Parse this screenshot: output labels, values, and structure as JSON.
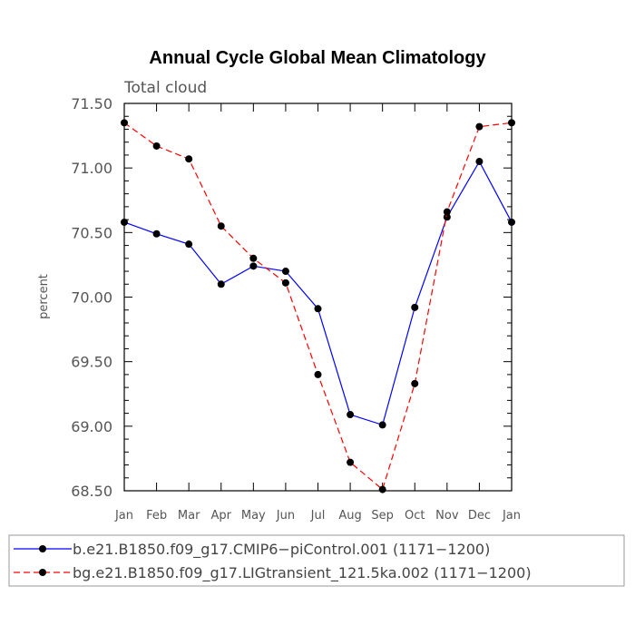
{
  "chart_data": {
    "type": "line",
    "title": "Annual Cycle Global Mean Climatology",
    "subtitle": "Total cloud",
    "xlabel": "",
    "ylabel": "percent",
    "categories": [
      "Jan",
      "Feb",
      "Mar",
      "Apr",
      "May",
      "Jun",
      "Jul",
      "Aug",
      "Sep",
      "Oct",
      "Nov",
      "Dec",
      "Jan"
    ],
    "ylim": [
      68.5,
      71.5
    ],
    "yticks": [
      "68.50",
      "69.00",
      "69.50",
      "70.00",
      "70.50",
      "71.00",
      "71.50"
    ],
    "grid": false,
    "legend_position": "bottom",
    "series": [
      {
        "name": "b.e21.B1850.f09_g17.CMIP6−piControl.001 (1171−1200)",
        "color": "#0000ff",
        "dash": "solid",
        "values": [
          70.58,
          70.49,
          70.41,
          70.1,
          70.24,
          70.2,
          69.91,
          69.09,
          69.01,
          69.92,
          70.62,
          71.05,
          70.58
        ]
      },
      {
        "name": "bg.e21.B1850.f09_g17.LIGtransient_121.5ka.002 (1171−1200)",
        "color": "#ff0000",
        "dash": "dashed",
        "values": [
          71.35,
          71.17,
          71.07,
          70.55,
          70.3,
          70.11,
          69.4,
          68.72,
          68.51,
          69.33,
          70.66,
          71.32,
          71.35
        ]
      }
    ]
  }
}
